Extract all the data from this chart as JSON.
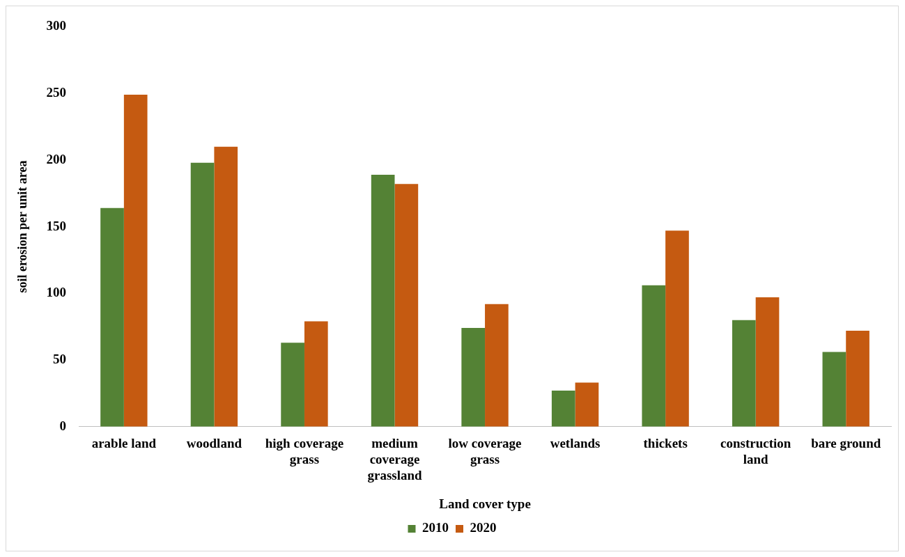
{
  "chart_data": {
    "type": "bar",
    "xlabel": "Land cover type",
    "ylabel": "soil erosion per unit area",
    "categories": [
      "arable land",
      "woodland",
      "high coverage grass",
      "medium coverage grassland",
      "low coverage grass",
      "wetlands",
      "thickets",
      "construction land",
      "bare ground"
    ],
    "series": [
      {
        "name": "2010",
        "color": "#548235",
        "values": [
          164,
          198,
          63,
          189,
          74,
          27,
          106,
          80,
          56
        ]
      },
      {
        "name": "2020",
        "color": "#c55a11",
        "values": [
          249,
          210,
          79,
          182,
          92,
          33,
          147,
          97,
          72
        ]
      }
    ],
    "ylim": [
      0,
      300
    ],
    "yticks": [
      0,
      50,
      100,
      150,
      200,
      250,
      300
    ],
    "grid": false,
    "legend": "bottom"
  }
}
